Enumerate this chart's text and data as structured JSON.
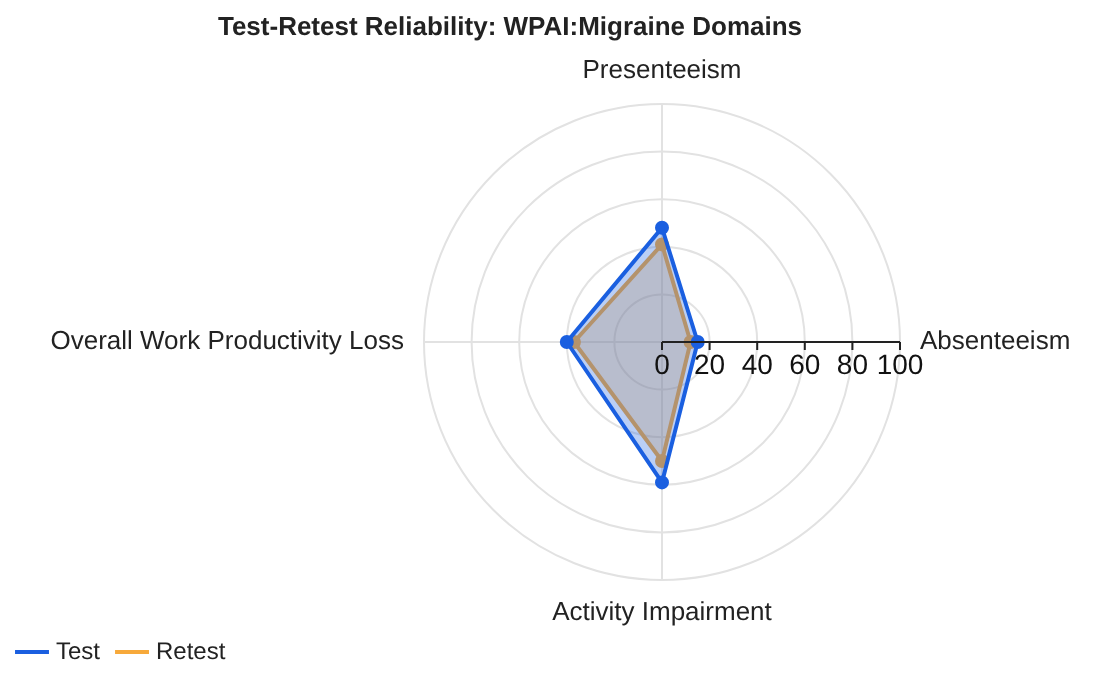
{
  "chart_data": {
    "type": "radar",
    "title": "Test-Retest Reliability: WPAI:Migraine Domains",
    "categories": [
      "Presenteeism",
      "Absenteeism",
      "Activity Impairment",
      "Overall Work Productivity Loss"
    ],
    "series": [
      {
        "name": "Test",
        "color": "#1a5fe0",
        "values": [
          48,
          15,
          59,
          40
        ]
      },
      {
        "name": "Retest",
        "color": "#f7a93a",
        "values": [
          41,
          12,
          50,
          37
        ]
      }
    ],
    "ylim": [
      0,
      100
    ],
    "yticks": [
      0,
      20,
      40,
      60,
      80,
      100
    ],
    "grid": true,
    "legend": "bottom left",
    "marker": "circle"
  }
}
